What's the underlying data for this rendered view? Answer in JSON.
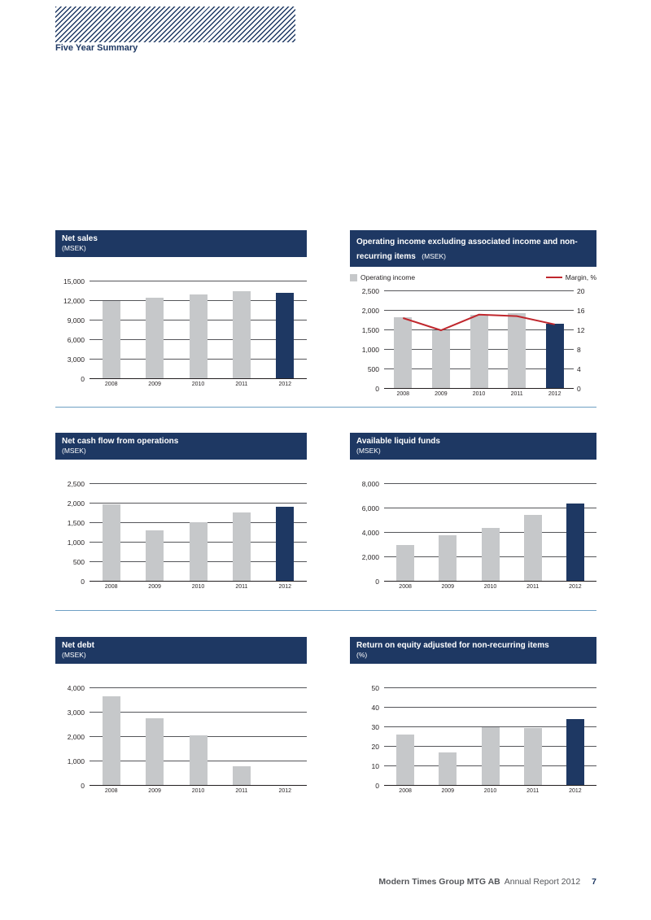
{
  "page": {
    "section_label": "Five Year Summary",
    "footer": {
      "company": "Modern Times Group MTG AB",
      "report": "Annual Report 2012",
      "page_number": "7"
    }
  },
  "colors": {
    "navy": "#1e3863",
    "bar_gray": "#c6c8ca",
    "red": "#c0272d",
    "separator_blue": "#6fa0c4"
  },
  "chart_data": [
    {
      "type": "bar",
      "title": "Net sales",
      "unit": "(MSEK)",
      "categories": [
        "2008",
        "2009",
        "2010",
        "2011",
        "2012"
      ],
      "values": [
        12000,
        12400,
        13000,
        13400,
        13250
      ],
      "ylim": [
        0,
        15000
      ],
      "yticks": [
        0,
        3000,
        6000,
        9000,
        12000,
        15000
      ],
      "highlight_last": true
    },
    {
      "type": "bar+line",
      "title": "Operating income excluding associated income and non-recurring items",
      "unit": "(MSEK)",
      "categories": [
        "2008",
        "2009",
        "2010",
        "2011",
        "2012"
      ],
      "values": [
        1840,
        1500,
        1890,
        1930,
        1670
      ],
      "ylim": [
        0,
        2500
      ],
      "yticks": [
        0,
        500,
        1000,
        1500,
        2000,
        2500
      ],
      "highlight_last": true,
      "legend": [
        {
          "label": "Operating income",
          "swatch": "bar"
        },
        {
          "label": "Margin, %",
          "swatch": "line"
        }
      ],
      "line_series": {
        "name": "Margin, %",
        "values": [
          14.5,
          12.0,
          15.2,
          14.9,
          13.2
        ],
        "ylim": [
          0,
          20
        ],
        "yticks": [
          0,
          4,
          8,
          12,
          16,
          20
        ]
      }
    },
    {
      "type": "bar",
      "title": "Net cash flow from operations",
      "unit": "(MSEK)",
      "categories": [
        "2008",
        "2009",
        "2010",
        "2011",
        "2012"
      ],
      "values": [
        1980,
        1310,
        1520,
        1770,
        1900
      ],
      "ylim": [
        0,
        2500
      ],
      "yticks": [
        0,
        500,
        1000,
        1500,
        2000,
        2500
      ],
      "highlight_last": true
    },
    {
      "type": "bar",
      "title": "Available liquid funds",
      "unit": "(MSEK)",
      "categories": [
        "2008",
        "2009",
        "2010",
        "2011",
        "2012"
      ],
      "values": [
        2950,
        3800,
        4400,
        5450,
        6350
      ],
      "ylim": [
        0,
        8000
      ],
      "yticks": [
        0,
        2000,
        4000,
        6000,
        8000
      ],
      "highlight_last": true
    },
    {
      "type": "bar",
      "title": "Net debt",
      "unit": "(MSEK)",
      "categories": [
        "2008",
        "2009",
        "2010",
        "2011",
        "2012"
      ],
      "values": [
        3650,
        2750,
        2050,
        800,
        0
      ],
      "ylim": [
        0,
        4000
      ],
      "yticks": [
        0,
        1000,
        2000,
        3000,
        4000
      ],
      "highlight_last": true
    },
    {
      "type": "bar",
      "title": "Return on equity adjusted for non-recurring items",
      "unit": "(%)",
      "categories": [
        "2008",
        "2009",
        "2010",
        "2011",
        "2012"
      ],
      "values": [
        26,
        17,
        30,
        29.5,
        34
      ],
      "ylim": [
        0,
        50
      ],
      "yticks": [
        0,
        10,
        20,
        30,
        40,
        50
      ],
      "highlight_last": true
    }
  ]
}
